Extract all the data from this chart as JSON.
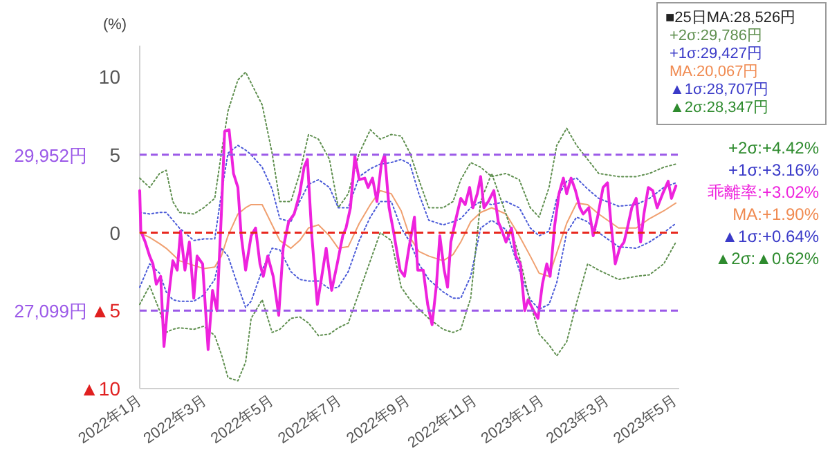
{
  "chart_data": {
    "type": "line",
    "ylabel": "(%)",
    "xlim": [
      "2022-01-01",
      "2023-05-05"
    ],
    "ylim": [
      -10,
      12
    ],
    "xticks": [
      {
        "value": "2022-01-01",
        "label": "2022年1月"
      },
      {
        "value": "2022-03-01",
        "label": "2022年3月"
      },
      {
        "value": "2022-05-01",
        "label": "2022年5月"
      },
      {
        "value": "2022-07-01",
        "label": "2022年7月"
      },
      {
        "value": "2022-09-01",
        "label": "2022年9月"
      },
      {
        "value": "2022-11-01",
        "label": "2022年11月"
      },
      {
        "value": "2023-01-01",
        "label": "2023年1月"
      },
      {
        "value": "2023-03-01",
        "label": "2023年3月"
      },
      {
        "value": "2023-05-01",
        "label": "2023年5月"
      }
    ],
    "yticks": [
      10,
      5,
      0,
      {
        "value": -5,
        "label": "▲5"
      },
      {
        "value": -10,
        "label": "▲10"
      }
    ],
    "ref_lines": [
      {
        "axis": "y",
        "value": 5,
        "label": "29,952円",
        "color": "#9b59e8",
        "line_style": "dashed"
      },
      {
        "axis": "y",
        "value": 0,
        "color": "#e8281e",
        "line_style": "dashed"
      },
      {
        "axis": "y",
        "value": -5,
        "label": "27,099円",
        "color": "#9b59e8",
        "line_style": "dashed"
      }
    ],
    "series": [
      {
        "color": "#5f8f4f",
        "line_style": "dotted",
        "x": [
          "2022-01-01",
          "2022-01-10",
          "2022-01-19",
          "2022-01-25",
          "2022-01-31",
          "2022-02-06",
          "2022-02-19",
          "2022-02-28",
          "2022-03-10",
          "2022-03-16",
          "2022-03-22",
          "2022-03-31",
          "2022-04-07",
          "2022-04-12",
          "2022-04-22",
          "2022-05-01",
          "2022-05-08",
          "2022-05-18",
          "2022-05-26",
          "2022-06-03",
          "2022-06-12",
          "2022-06-22",
          "2022-06-30",
          "2022-07-09",
          "2022-07-19",
          "2022-07-29",
          "2022-08-07",
          "2022-08-17",
          "2022-08-26",
          "2022-09-03",
          "2022-09-11",
          "2022-09-20",
          "2022-10-03",
          "2022-10-12",
          "2022-10-19",
          "2022-10-28",
          "2022-11-06",
          "2022-11-16",
          "2022-11-29",
          "2022-12-11",
          "2022-12-21",
          "2022-12-29",
          "2023-01-07",
          "2023-01-14",
          "2023-01-23",
          "2023-02-01",
          "2023-02-11",
          "2023-02-21",
          "2023-03-11",
          "2023-03-27",
          "2023-04-08",
          "2023-04-21",
          "2023-05-02"
        ],
        "values": [
          3.5,
          2.9,
          3.8,
          4,
          2,
          1.3,
          1.2,
          1.6,
          2.2,
          5.1,
          7.8,
          9.8,
          10.3,
          9.6,
          8.2,
          5.1,
          2,
          2,
          3.8,
          6.3,
          6,
          4.7,
          1.6,
          2.5,
          5.1,
          6.6,
          6,
          6.3,
          6.2,
          5.1,
          3.4,
          1.6,
          1.6,
          2,
          3.4,
          4.5,
          4.2,
          3.6,
          3.8,
          3.4,
          1.6,
          1,
          2.9,
          5.6,
          6.7,
          5.6,
          4.7,
          3.8,
          3.6,
          3.6,
          3.8,
          4.2,
          4.4
        ]
      },
      {
        "color": "#4a5ad8",
        "line_style": "dotted",
        "x": [
          "2022-01-01",
          "2022-01-10",
          "2022-01-19",
          "2022-01-25",
          "2022-01-31",
          "2022-02-06",
          "2022-02-19",
          "2022-02-28",
          "2022-03-10",
          "2022-03-16",
          "2022-03-22",
          "2022-03-31",
          "2022-04-07",
          "2022-04-12",
          "2022-04-22",
          "2022-05-01",
          "2022-05-08",
          "2022-05-18",
          "2022-05-26",
          "2022-06-03",
          "2022-06-12",
          "2022-06-22",
          "2022-06-30",
          "2022-07-09",
          "2022-07-19",
          "2022-07-29",
          "2022-08-07",
          "2022-08-17",
          "2022-08-26",
          "2022-09-03",
          "2022-09-11",
          "2022-09-20",
          "2022-10-03",
          "2022-10-12",
          "2022-10-19",
          "2022-10-28",
          "2022-11-06",
          "2022-11-16",
          "2022-11-29",
          "2022-12-11",
          "2022-12-21",
          "2022-12-29",
          "2023-01-07",
          "2023-01-14",
          "2023-01-23",
          "2023-02-01",
          "2023-02-11",
          "2023-02-21",
          "2023-03-11",
          "2023-03-27",
          "2023-04-08",
          "2023-04-21",
          "2023-05-02"
        ],
        "values": [
          1.3,
          1.2,
          1.3,
          1.3,
          0.8,
          0.3,
          -0.5,
          -0.4,
          -0.4,
          2.5,
          5.1,
          5.6,
          5.3,
          5,
          4.2,
          2.8,
          0.9,
          0.7,
          2,
          3.1,
          3.4,
          2.9,
          1.6,
          1.6,
          3.6,
          4.1,
          4.4,
          4.5,
          4.7,
          4.4,
          2.5,
          0.8,
          0.5,
          0.7,
          0.9,
          1.6,
          2,
          1.8,
          2,
          1.6,
          0.3,
          -0.2,
          0.1,
          2.2,
          3.3,
          3.5,
          2.8,
          2.2,
          1.7,
          1.8,
          2.2,
          2.9,
          3.2
        ]
      },
      {
        "color": "#f0a070",
        "line_style": "solid",
        "x": [
          "2022-01-01",
          "2022-01-10",
          "2022-01-19",
          "2022-01-25",
          "2022-01-31",
          "2022-02-06",
          "2022-02-19",
          "2022-02-28",
          "2022-03-10",
          "2022-03-16",
          "2022-03-22",
          "2022-03-31",
          "2022-04-07",
          "2022-04-12",
          "2022-04-22",
          "2022-05-01",
          "2022-05-08",
          "2022-05-18",
          "2022-05-26",
          "2022-06-03",
          "2022-06-12",
          "2022-06-22",
          "2022-06-30",
          "2022-07-09",
          "2022-07-19",
          "2022-07-29",
          "2022-08-07",
          "2022-08-17",
          "2022-08-26",
          "2022-09-03",
          "2022-09-11",
          "2022-09-20",
          "2022-10-03",
          "2022-10-12",
          "2022-10-19",
          "2022-10-28",
          "2022-11-06",
          "2022-11-16",
          "2022-11-29",
          "2022-12-11",
          "2022-12-21",
          "2022-12-29",
          "2023-01-07",
          "2023-01-14",
          "2023-01-23",
          "2023-02-01",
          "2023-02-11",
          "2023-02-21",
          "2023-03-11",
          "2023-03-27",
          "2023-04-08",
          "2023-04-21",
          "2023-05-02"
        ],
        "values": [
          0,
          -0.3,
          -0.7,
          -1,
          -1.4,
          -1.8,
          -2.1,
          -2.3,
          -2.2,
          -1.5,
          -0.2,
          1.2,
          1.6,
          1.8,
          1.8,
          0.5,
          -0.5,
          -1,
          -0.5,
          0.3,
          0.5,
          -0.2,
          -1,
          -0.9,
          0.6,
          1.8,
          2.7,
          2.5,
          1.4,
          -0.3,
          -1.2,
          -1.5,
          -1.8,
          -1.4,
          -0.6,
          0.7,
          1.3,
          1.6,
          1.2,
          -0.2,
          -1.5,
          -2.6,
          -2.8,
          -1.3,
          0.6,
          1.9,
          1.8,
          1.2,
          0.3,
          0.3,
          0.9,
          1.4,
          1.9
        ]
      },
      {
        "color": "#4a5ad8",
        "line_style": "dotted",
        "x": [
          "2022-01-01",
          "2022-01-10",
          "2022-01-19",
          "2022-01-25",
          "2022-01-31",
          "2022-02-06",
          "2022-02-19",
          "2022-02-28",
          "2022-03-10",
          "2022-03-16",
          "2022-03-22",
          "2022-03-31",
          "2022-04-07",
          "2022-04-12",
          "2022-04-22",
          "2022-05-01",
          "2022-05-08",
          "2022-05-18",
          "2022-05-26",
          "2022-06-03",
          "2022-06-12",
          "2022-06-22",
          "2022-06-30",
          "2022-07-09",
          "2022-07-19",
          "2022-07-29",
          "2022-08-07",
          "2022-08-17",
          "2022-08-26",
          "2022-09-03",
          "2022-09-11",
          "2022-09-20",
          "2022-10-03",
          "2022-10-12",
          "2022-10-19",
          "2022-10-28",
          "2022-11-06",
          "2022-11-16",
          "2022-11-29",
          "2022-12-11",
          "2022-12-21",
          "2022-12-29",
          "2023-01-07",
          "2023-01-14",
          "2023-01-23",
          "2023-02-01",
          "2023-02-11",
          "2023-02-21",
          "2023-03-11",
          "2023-03-27",
          "2023-04-08",
          "2023-04-21",
          "2023-05-02"
        ],
        "values": [
          -3.5,
          -2,
          -2.6,
          -3.8,
          -4.3,
          -4.4,
          -4.4,
          -4,
          -3,
          -1,
          -1.5,
          -3.4,
          -4.8,
          -4.4,
          -2.4,
          -1,
          -1.1,
          -2.5,
          -3,
          -3.1,
          -3.1,
          -3.6,
          -3.5,
          -2.5,
          -0.5,
          1,
          2,
          2,
          0.3,
          -0.6,
          -2,
          -3,
          -3.8,
          -4.2,
          -4.2,
          -2.8,
          0.3,
          0.8,
          0.2,
          -2.4,
          -4.3,
          -4.9,
          -4.6,
          -3.2,
          0,
          1,
          0.7,
          0,
          -0.9,
          -1,
          -0.6,
          0,
          0.6
        ]
      },
      {
        "color": "#5f8f4f",
        "line_style": "dotted",
        "x": [
          "2022-01-01",
          "2022-01-10",
          "2022-01-19",
          "2022-01-25",
          "2022-01-31",
          "2022-02-06",
          "2022-02-19",
          "2022-02-28",
          "2022-03-10",
          "2022-03-16",
          "2022-03-22",
          "2022-03-31",
          "2022-04-07",
          "2022-04-12",
          "2022-04-22",
          "2022-05-01",
          "2022-05-08",
          "2022-05-18",
          "2022-05-26",
          "2022-06-03",
          "2022-06-12",
          "2022-06-22",
          "2022-06-30",
          "2022-07-09",
          "2022-07-19",
          "2022-07-29",
          "2022-08-07",
          "2022-08-17",
          "2022-08-26",
          "2022-09-03",
          "2022-09-11",
          "2022-09-20",
          "2022-10-03",
          "2022-10-12",
          "2022-10-19",
          "2022-10-28",
          "2022-11-06",
          "2022-11-16",
          "2022-11-29",
          "2022-12-11",
          "2022-12-21",
          "2022-12-29",
          "2023-01-07",
          "2023-01-14",
          "2023-01-23",
          "2023-02-01",
          "2023-02-11",
          "2023-02-21",
          "2023-03-11",
          "2023-03-27",
          "2023-04-08",
          "2023-04-21",
          "2023-05-02"
        ],
        "values": [
          -4.6,
          -3.4,
          -5,
          -6.4,
          -6.2,
          -6.1,
          -6.2,
          -6,
          -6.6,
          -7.8,
          -9.3,
          -9.5,
          -8.3,
          -5.5,
          -4.3,
          -6.4,
          -6.2,
          -5.5,
          -5.4,
          -5.8,
          -6.6,
          -6.5,
          -6.1,
          -5.8,
          -3.8,
          -1.8,
          0,
          -0.5,
          -3.5,
          -4.3,
          -4.9,
          -5.5,
          -6.2,
          -6.4,
          -6.2,
          -4.2,
          2,
          3.8,
          1.2,
          -1.5,
          -4.5,
          -6.5,
          -7.2,
          -7.9,
          -7,
          -4.5,
          -2,
          -2.4,
          -3,
          -2.8,
          -2.7,
          -2,
          -0.6
        ]
      },
      {
        "color": "#ee22dd",
        "line_style": "solid",
        "x": [
          "2022-01-01",
          "2022-01-02",
          "2022-01-06",
          "2022-01-10",
          "2022-01-13",
          "2022-01-16",
          "2022-01-20",
          "2022-01-23",
          "2022-01-27",
          "2022-01-31",
          "2022-02-04",
          "2022-02-07",
          "2022-02-11",
          "2022-02-15",
          "2022-02-19",
          "2022-02-22",
          "2022-02-27",
          "2022-03-04",
          "2022-03-08",
          "2022-03-12",
          "2022-03-16",
          "2022-03-19",
          "2022-03-23",
          "2022-03-27",
          "2022-03-31",
          "2022-04-03",
          "2022-04-07",
          "2022-04-12",
          "2022-04-16",
          "2022-04-20",
          "2022-04-23",
          "2022-04-27",
          "2022-05-02",
          "2022-05-07",
          "2022-05-11",
          "2022-05-16",
          "2022-05-21",
          "2022-05-26",
          "2022-05-30",
          "2022-06-02",
          "2022-06-06",
          "2022-06-11",
          "2022-06-15",
          "2022-06-19",
          "2022-06-24",
          "2022-06-29",
          "2022-07-04",
          "2022-07-07",
          "2022-07-11",
          "2022-07-15",
          "2022-07-19",
          "2022-07-24",
          "2022-07-27",
          "2022-07-31",
          "2022-08-04",
          "2022-08-08",
          "2022-08-11",
          "2022-08-15",
          "2022-08-19",
          "2022-08-25",
          "2022-08-29",
          "2022-09-02",
          "2022-09-07",
          "2022-09-10",
          "2022-09-15",
          "2022-09-19",
          "2022-09-23",
          "2022-09-27",
          "2022-09-30",
          "2022-10-04",
          "2022-10-07",
          "2022-10-10",
          "2022-10-14",
          "2022-10-19",
          "2022-10-23",
          "2022-10-27",
          "2022-10-30",
          "2022-11-03",
          "2022-11-06",
          "2022-11-09",
          "2022-11-13",
          "2022-11-18",
          "2022-11-22",
          "2022-11-26",
          "2022-11-29",
          "2022-12-04",
          "2022-12-08",
          "2022-12-12",
          "2022-12-16",
          "2022-12-19",
          "2022-12-24",
          "2022-12-28",
          "2023-01-01",
          "2023-01-05",
          "2023-01-08",
          "2023-01-12",
          "2023-01-16",
          "2023-01-20",
          "2023-01-23",
          "2023-01-27",
          "2023-01-31",
          "2023-02-04",
          "2023-02-07",
          "2023-02-12",
          "2023-02-16",
          "2023-02-20",
          "2023-02-25",
          "2023-03-01",
          "2023-03-04",
          "2023-03-08",
          "2023-03-12",
          "2023-03-16",
          "2023-03-19",
          "2023-03-23",
          "2023-03-27",
          "2023-03-31",
          "2023-04-03",
          "2023-04-07",
          "2023-04-11",
          "2023-04-15",
          "2023-04-20",
          "2023-04-25",
          "2023-04-28",
          "2023-05-02"
        ],
        "values": [
          2.7,
          0.1,
          -0.6,
          -1.5,
          -2,
          -3.3,
          -2.8,
          -7.3,
          -4.2,
          -1.8,
          -2.4,
          0.1,
          -2.4,
          -0.6,
          -4.2,
          -1.5,
          -2,
          -7.5,
          -3.7,
          -5,
          1.2,
          6.5,
          6.6,
          3.8,
          2.9,
          -0.2,
          -2.4,
          -0.2,
          0.3,
          -2,
          -2.8,
          -1.5,
          -2.8,
          -5.3,
          -1,
          0.7,
          1.2,
          2.5,
          4.2,
          4.7,
          -0.2,
          -4.6,
          -2.8,
          -1,
          -3.7,
          -2,
          -0.2,
          0.3,
          1.6,
          4.9,
          3.4,
          3.5,
          2.9,
          3.5,
          2,
          4.4,
          5,
          1.6,
          0.1,
          -2.4,
          -2.8,
          -1,
          1,
          -2.4,
          -2.4,
          -4.6,
          -5.9,
          -3.3,
          -0.2,
          -2.4,
          -3.5,
          -0.6,
          0.7,
          2.2,
          1.8,
          2.9,
          1.6,
          2.5,
          3.6,
          1.6,
          2,
          2.7,
          0.7,
          0,
          -0.6,
          0.3,
          -1.5,
          -2,
          -5,
          -4.3,
          -5,
          -5.5,
          -3.3,
          -2,
          -2.8,
          0.4,
          2.5,
          3.5,
          2.5,
          3.5,
          2.7,
          1.6,
          1.2,
          1.6,
          -0.2,
          1,
          2.9,
          3.2,
          0.7,
          -2,
          -1,
          -0.6,
          0.3,
          1.6,
          2.2,
          -0.6,
          1.2,
          2.9,
          2.7,
          1.6,
          2.5,
          3.3,
          2.2,
          3
        ]
      }
    ],
    "annotations": [
      "■25日MA:28,526円",
      "+2σ:29,786円",
      "+1σ:29,427円",
      "MA:20,067円",
      "▲1σ:28,707円",
      "▲2σ:28,347円",
      "+2σ:+4.42%",
      "+1σ:+3.16%",
      "乖離率:+3.02%",
      "MA:+1.90%",
      "▲1σ:+0.64%",
      "▲2σ:▲0.62%"
    ]
  }
}
